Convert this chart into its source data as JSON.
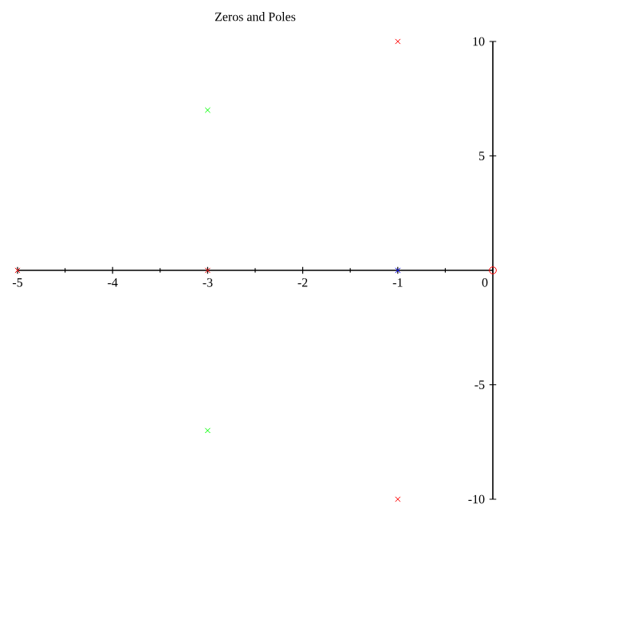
{
  "chart_data": {
    "type": "scatter",
    "title": "Zeros and Poles",
    "series": [
      {
        "marker": "cross",
        "color": "#ff0000",
        "x": [
          -1,
          -1,
          -5,
          -3
        ],
        "values": [
          10,
          -10,
          0,
          0
        ]
      },
      {
        "marker": "cross",
        "color": "#00ff00",
        "x": [
          -3,
          -3
        ],
        "values": [
          7,
          -7
        ]
      },
      {
        "marker": "cross",
        "color": "#0000ff",
        "x": [
          -1
        ],
        "values": [
          0
        ]
      },
      {
        "marker": "circle",
        "color": "#ff0000",
        "x": [
          0
        ],
        "values": [
          0
        ]
      }
    ],
    "xlim": [
      -5,
      0
    ],
    "ylim": [
      -10,
      10
    ],
    "xticks": [
      -5,
      -4,
      -3,
      -2,
      -1,
      0
    ],
    "yticks": [
      -10,
      -5,
      5,
      10
    ],
    "grid": false
  }
}
